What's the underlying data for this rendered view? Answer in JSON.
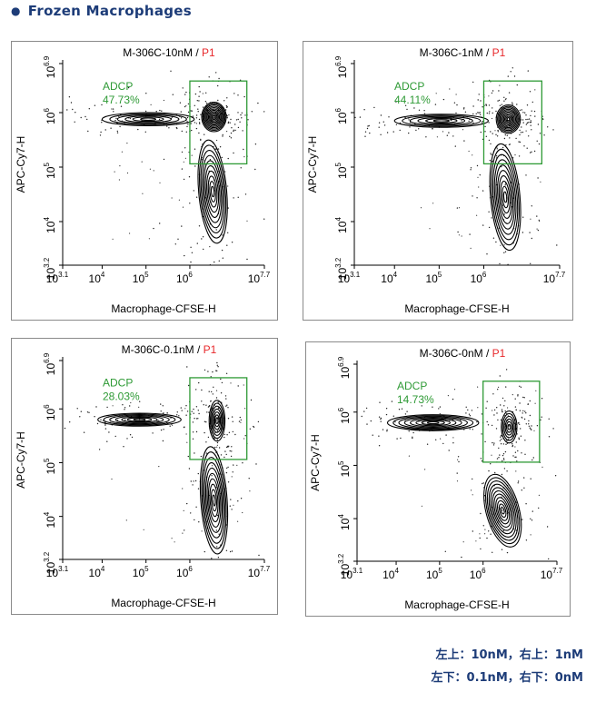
{
  "heading": "Frozen Macrophages",
  "colors": {
    "heading": "#1d3c78",
    "gate": "#2e9a35",
    "gate_label": "#2e9a35",
    "p1": "#e8282b",
    "contour": "#000000"
  },
  "chart_data": [
    {
      "type": "scatter",
      "title": "M-306C-10nM",
      "title_suffix": "P1",
      "xlabel": "Macrophage-CFSE-H",
      "ylabel": "APC-Cy7-H",
      "xscale": "log",
      "yscale": "log",
      "xlim": [
        3.1,
        7.7
      ],
      "ylim": [
        3.2,
        6.9
      ],
      "xticks": [
        {
          "base": "10",
          "exp": "3.1"
        },
        {
          "base": "10",
          "exp": "4"
        },
        {
          "base": "10",
          "exp": "5"
        },
        {
          "base": "10",
          "exp": "6"
        },
        {
          "base": "10",
          "exp": "7.7"
        }
      ],
      "yticks": [
        {
          "base": "10",
          "exp": "3.2"
        },
        {
          "base": "10",
          "exp": "4"
        },
        {
          "base": "10",
          "exp": "5"
        },
        {
          "base": "10",
          "exp": "6"
        },
        {
          "base": "10",
          "exp": "6.9"
        }
      ],
      "gate": {
        "name": "ADCP",
        "value": "47.73%",
        "x": [
          6.0,
          7.3
        ],
        "y": [
          5.06,
          6.58
        ]
      }
    },
    {
      "type": "scatter",
      "title": "M-306C-1nM",
      "title_suffix": "P1",
      "xlabel": "Macrophage-CFSE-H",
      "ylabel": "APC-Cy7-H",
      "xscale": "log",
      "yscale": "log",
      "xlim": [
        3.1,
        7.7
      ],
      "ylim": [
        3.2,
        6.9
      ],
      "xticks": [
        {
          "base": "10",
          "exp": "3.1"
        },
        {
          "base": "10",
          "exp": "4"
        },
        {
          "base": "10",
          "exp": "5"
        },
        {
          "base": "10",
          "exp": "6"
        },
        {
          "base": "10",
          "exp": "7.7"
        }
      ],
      "yticks": [
        {
          "base": "10",
          "exp": "3.2"
        },
        {
          "base": "10",
          "exp": "4"
        },
        {
          "base": "10",
          "exp": "5"
        },
        {
          "base": "10",
          "exp": "6"
        },
        {
          "base": "10",
          "exp": "6.9"
        }
      ],
      "gate": {
        "name": "ADCP",
        "value": "44.11%",
        "x": [
          6.0,
          7.3
        ],
        "y": [
          5.06,
          6.58
        ]
      }
    },
    {
      "type": "scatter",
      "title": "M-306C-0.1nM",
      "title_suffix": "P1",
      "xlabel": "Macrophage-CFSE-H",
      "ylabel": "APC-Cy7-H",
      "xscale": "log",
      "yscale": "log",
      "xlim": [
        3.1,
        7.7
      ],
      "ylim": [
        3.2,
        6.9
      ],
      "xticks": [
        {
          "base": "10",
          "exp": "3.1"
        },
        {
          "base": "10",
          "exp": "4"
        },
        {
          "base": "10",
          "exp": "5"
        },
        {
          "base": "10",
          "exp": "6"
        },
        {
          "base": "10",
          "exp": "7.7"
        }
      ],
      "yticks": [
        {
          "base": "10",
          "exp": "3.2"
        },
        {
          "base": "10",
          "exp": "4"
        },
        {
          "base": "10",
          "exp": "5"
        },
        {
          "base": "10",
          "exp": "6"
        },
        {
          "base": "10",
          "exp": "6.9"
        }
      ],
      "gate": {
        "name": "ADCP",
        "value": "28.03%",
        "x": [
          6.0,
          7.3
        ],
        "y": [
          5.06,
          6.58
        ]
      }
    },
    {
      "type": "scatter",
      "title": "M-306C-0nM",
      "title_suffix": "P1",
      "xlabel": "Macrophage-CFSE-H",
      "ylabel": "APC-Cy7-H",
      "xscale": "log",
      "yscale": "log",
      "xlim": [
        3.1,
        7.7
      ],
      "ylim": [
        3.2,
        6.9
      ],
      "xticks": [
        {
          "base": "10",
          "exp": "3.1"
        },
        {
          "base": "10",
          "exp": "4"
        },
        {
          "base": "10",
          "exp": "5"
        },
        {
          "base": "10",
          "exp": "6"
        },
        {
          "base": "10",
          "exp": "7.7"
        }
      ],
      "yticks": [
        {
          "base": "10",
          "exp": "3.2"
        },
        {
          "base": "10",
          "exp": "4"
        },
        {
          "base": "10",
          "exp": "5"
        },
        {
          "base": "10",
          "exp": "6"
        },
        {
          "base": "10",
          "exp": "6.9"
        }
      ],
      "gate": {
        "name": "ADCP",
        "value": "14.73%",
        "x": [
          6.0,
          7.3
        ],
        "y": [
          5.06,
          6.58
        ]
      }
    }
  ],
  "caption": {
    "line1": "左上：10nM，右上：1nM",
    "line2": "左下：0.1nM，右下：0nM"
  }
}
